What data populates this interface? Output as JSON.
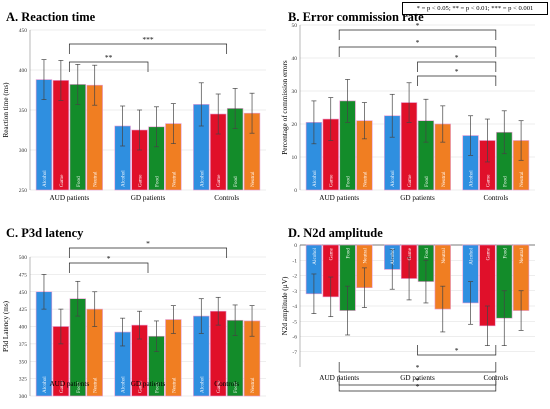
{
  "figure": {
    "significance_legend": "* = p < 0.05; ** = p < 0.01; *** = p < 0.001"
  },
  "colors": {
    "Alcohol": "#2f8fe0",
    "Game": "#e0102a",
    "Food": "#138c2a",
    "Neutral": "#f07e22"
  },
  "chart_data": [
    {
      "type": "bar",
      "title": "A. Reaction time",
      "ylabel": "Reaction time (ms)",
      "ylim": [
        250,
        450
      ],
      "yticks": [
        250,
        300,
        350,
        400,
        450
      ],
      "groups": [
        "AUD patients",
        "GD patients",
        "Controls"
      ],
      "series": [
        {
          "name": "Alcohol",
          "values": [
            388,
            330,
            357
          ],
          "err": [
            25,
            25,
            27
          ]
        },
        {
          "name": "Game",
          "values": [
            387,
            325,
            345
          ],
          "err": [
            25,
            25,
            25
          ]
        },
        {
          "name": "Food",
          "values": [
            382,
            329,
            352
          ],
          "err": [
            25,
            25,
            25
          ]
        },
        {
          "name": "Neutral",
          "values": [
            381,
            333,
            346
          ],
          "err": [
            25,
            25,
            25
          ]
        }
      ],
      "annotations": [
        {
          "label": "**",
          "from": "AUD patients",
          "to": "GD patients"
        },
        {
          "label": "***",
          "from": "AUD patients",
          "to": "Controls"
        }
      ]
    },
    {
      "type": "bar",
      "title": "B. Error commission rate",
      "ylabel": "Percentage of commission errors",
      "ylim": [
        0,
        50
      ],
      "yticks": [
        0,
        10,
        20,
        30,
        40,
        50
      ],
      "groups": [
        "AUD patients",
        "GD patients",
        "Controls"
      ],
      "series": [
        {
          "name": "Alcohol",
          "values": [
            20.5,
            22.5,
            16.5
          ],
          "err": [
            6.5,
            6.5,
            6.0
          ]
        },
        {
          "name": "Game",
          "values": [
            21.5,
            26.5,
            15.0
          ],
          "err": [
            6.5,
            6.0,
            6.5
          ]
        },
        {
          "name": "Food",
          "values": [
            27.0,
            21.0,
            17.5
          ],
          "err": [
            6.5,
            6.5,
            6.5
          ]
        },
        {
          "name": "Neutral",
          "values": [
            21.0,
            20.0,
            15.0
          ],
          "err": [
            5.5,
            5.5,
            6.0
          ]
        }
      ],
      "annotations": [
        {
          "label": "*",
          "from": "AUD patients",
          "to": "Controls"
        },
        {
          "label": "*",
          "from": "AUD patients",
          "to": "Controls"
        },
        {
          "label": "*",
          "from": "GD patients",
          "to": "Controls"
        },
        {
          "label": "*",
          "from": "GD patients",
          "to": "Controls"
        }
      ]
    },
    {
      "type": "bar",
      "title": "C. P3d latency",
      "ylabel": "P3d Latency (ms)",
      "ylim": [
        300,
        500
      ],
      "yticks": [
        300,
        325,
        350,
        375,
        400,
        425,
        450,
        475,
        500
      ],
      "groups": [
        "AUD patients",
        "GD patients",
        "Controls"
      ],
      "series": [
        {
          "name": "Alcohol",
          "values": [
            450,
            392,
            415
          ],
          "err": [
            25,
            20,
            25
          ]
        },
        {
          "name": "Game",
          "values": [
            400,
            402,
            422
          ],
          "err": [
            25,
            20,
            20
          ]
        },
        {
          "name": "Food",
          "values": [
            440,
            386,
            409
          ],
          "err": [
            25,
            22,
            22
          ]
        },
        {
          "name": "Neutral",
          "values": [
            425,
            410,
            408
          ],
          "err": [
            25,
            20,
            22
          ]
        }
      ],
      "annotations": [
        {
          "label": "*",
          "from": "AUD patients",
          "to": "GD patients"
        },
        {
          "label": "*",
          "from": "AUD patients",
          "to": "Controls"
        }
      ]
    },
    {
      "type": "bar",
      "title": "D. N2d amplitude",
      "ylabel": "N2d amplitude (µV)",
      "ylim": [
        -8,
        0
      ],
      "yticks": [
        0,
        -1,
        -2,
        -3,
        -4,
        -5,
        -6,
        -7
      ],
      "groups": [
        "AUD patients",
        "GD patients",
        "Controls"
      ],
      "series": [
        {
          "name": "Alcohol",
          "values": [
            -3.2,
            -1.6,
            -3.8
          ],
          "err": [
            1.3,
            1.3,
            1.4
          ]
        },
        {
          "name": "Game",
          "values": [
            -3.4,
            -2.2,
            -5.3
          ],
          "err": [
            1.3,
            1.4,
            1.3
          ]
        },
        {
          "name": "Food",
          "values": [
            -4.3,
            -2.4,
            -4.8
          ],
          "err": [
            1.6,
            1.4,
            1.8
          ]
        },
        {
          "name": "Neutral",
          "values": [
            -2.8,
            -4.2,
            -4.3
          ],
          "err": [
            1.3,
            1.5,
            1.3
          ]
        }
      ],
      "annotations": [
        {
          "label": "*",
          "from": "GD patients",
          "to": "Controls"
        },
        {
          "label": "*",
          "from": "AUD patients",
          "to": "Controls"
        },
        {
          "label": "*",
          "from": "AUD patients",
          "to": "Controls"
        },
        {
          "label": "*",
          "from": "AUD patients",
          "to": "Controls"
        }
      ]
    }
  ]
}
